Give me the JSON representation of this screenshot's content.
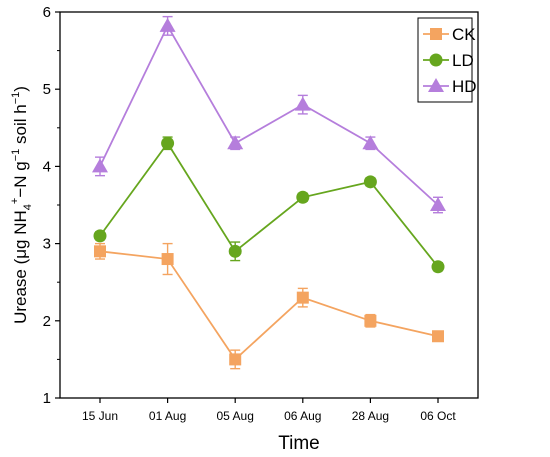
{
  "chart_data": {
    "type": "line",
    "categories": [
      "15 Jun",
      "01 Aug",
      "05 Aug",
      "06 Aug",
      "28 Aug",
      "06 Oct"
    ],
    "xlabel": "Time",
    "ylabel": {
      "prefix": "Urease (μg NH",
      "sub4": "4",
      "sup_plus": "+",
      "mid": "−N g",
      "sup_minus1": "−1",
      "mid2": " soil h",
      "sup_minus1b": "−1",
      "suffix": ")"
    },
    "ylim": [
      1,
      6
    ],
    "yticks": [
      1,
      2,
      3,
      4,
      5,
      6
    ],
    "legend_position": "top-right",
    "series": [
      {
        "name": "CK",
        "color": "#F4A460",
        "marker": "square",
        "values": [
          2.9,
          2.8,
          1.5,
          2.3,
          2.0,
          1.8
        ],
        "errors": [
          0.1,
          0.2,
          0.12,
          0.12,
          0.08,
          0.05
        ]
      },
      {
        "name": "LD",
        "color": "#66A61E",
        "marker": "circle",
        "values": [
          3.1,
          4.3,
          2.9,
          3.6,
          3.8,
          2.7
        ],
        "errors": [
          0.05,
          0.08,
          0.12,
          0.05,
          0.05,
          0.05
        ]
      },
      {
        "name": "HD",
        "color": "#B57EDC",
        "marker": "triangle",
        "values": [
          4.0,
          5.82,
          4.3,
          4.8,
          4.3,
          3.5
        ],
        "errors": [
          0.12,
          0.12,
          0.08,
          0.12,
          0.08,
          0.1
        ]
      }
    ]
  }
}
